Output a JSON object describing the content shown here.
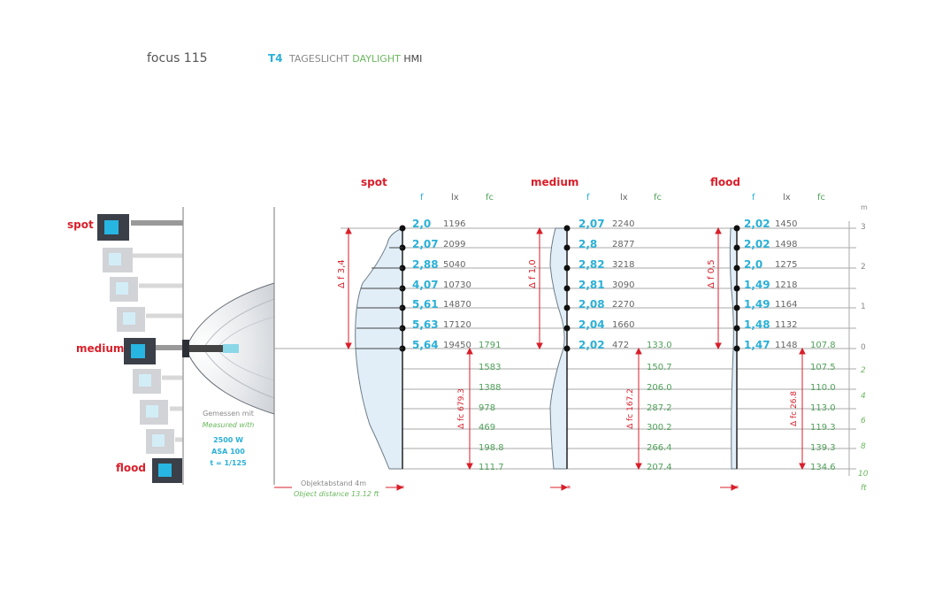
{
  "header": {
    "product": "focus 115",
    "lamp_code": "T4",
    "tageslicht": "TAGESLICHT",
    "daylight": "DAYLIGHT",
    "hmi": "HMI"
  },
  "positions": [
    "spot",
    "medium",
    "flood"
  ],
  "measurement": {
    "de": "Gemessen mit",
    "en": "Measured with",
    "power": "2500 W",
    "asa": "ASA 100",
    "shutter": "t = 1/125"
  },
  "distance_note": {
    "de": "Objektabstand 4m",
    "en": "Object distance 13.12 ft"
  },
  "columns": {
    "f": "f",
    "lx": "lx",
    "fc": "fc"
  },
  "scale": {
    "m_unit": "m",
    "ft_unit": "ft",
    "m_ticks": [
      "3",
      "2",
      "1",
      "0"
    ],
    "ft_ticks": [
      "2",
      "4",
      "6",
      "8",
      "10"
    ]
  },
  "panels": [
    {
      "name": "spot",
      "delta_f": "Δ f 3,4",
      "delta_fc": "Δ fc 679.3",
      "rows": [
        {
          "f": "2,0",
          "lx": "1196"
        },
        {
          "f": "2,07",
          "lx": "2099"
        },
        {
          "f": "2,88",
          "lx": "5040"
        },
        {
          "f": "4,07",
          "lx": "10730"
        },
        {
          "f": "5,61",
          "lx": "14870"
        },
        {
          "f": "5,63",
          "lx": "17120"
        },
        {
          "f": "5,64",
          "lx": "19450",
          "fc": "1791"
        }
      ],
      "fc_below": [
        "1583",
        "1388",
        "978",
        "469",
        "198.8",
        "111.7"
      ]
    },
    {
      "name": "medium",
      "delta_f": "Δ f 1,0",
      "delta_fc": "Δ fc 167.2",
      "rows": [
        {
          "f": "2,07",
          "lx": "2240"
        },
        {
          "f": "2,8",
          "lx": "2877"
        },
        {
          "f": "2,82",
          "lx": "3218"
        },
        {
          "f": "2,81",
          "lx": "3090"
        },
        {
          "f": "2,08",
          "lx": "2270"
        },
        {
          "f": "2,04",
          "lx": "1660"
        },
        {
          "f": "2,02",
          "lx": "472",
          "fc": "133.0"
        }
      ],
      "fc_below": [
        "150.7",
        "206.0",
        "287.2",
        "300.2",
        "266.4",
        "207.4"
      ]
    },
    {
      "name": "flood",
      "delta_f": "Δ f 0,5",
      "delta_fc": "Δ fc 26.8",
      "rows": [
        {
          "f": "2,02",
          "lx": "1450"
        },
        {
          "f": "2,02",
          "lx": "1498"
        },
        {
          "f": "2,0",
          "lx": "1275"
        },
        {
          "f": "1,49",
          "lx": "1218"
        },
        {
          "f": "1,49",
          "lx": "1164"
        },
        {
          "f": "1,48",
          "lx": "1132"
        },
        {
          "f": "1,47",
          "lx": "1148",
          "fc": "107.8"
        }
      ],
      "fc_below": [
        "107.5",
        "110.0",
        "113.0",
        "119.3",
        "139.3",
        "134.6"
      ]
    }
  ]
}
